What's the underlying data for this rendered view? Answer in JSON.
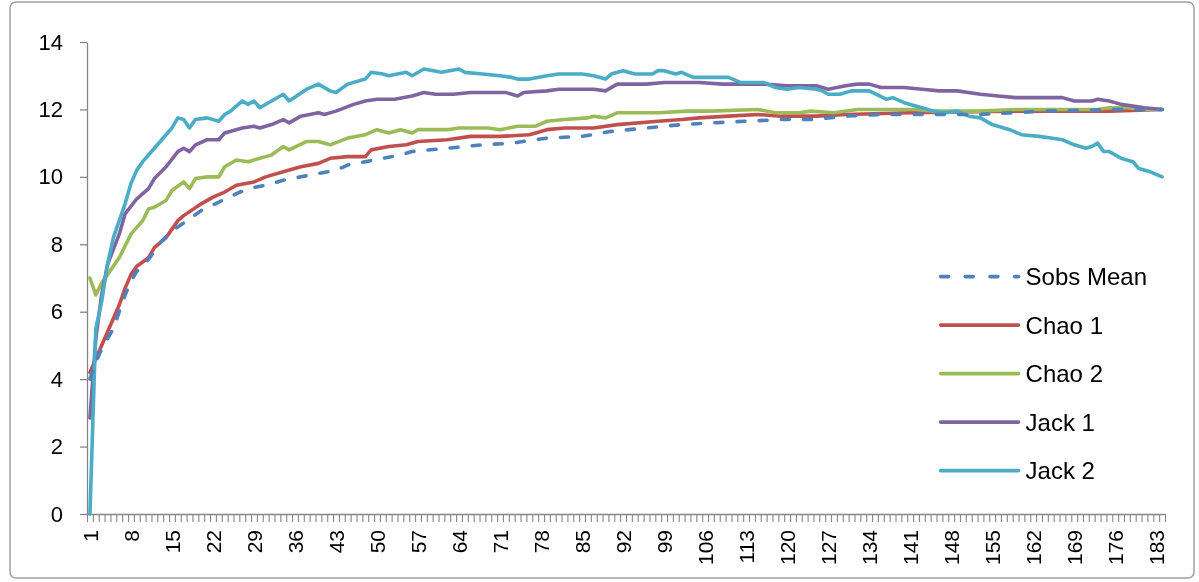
{
  "chart_data": {
    "type": "line",
    "legend": "bottom right",
    "xlim": [
      0.5,
      184.5
    ],
    "xticks": [
      1,
      8,
      15,
      22,
      29,
      36,
      43,
      50,
      57,
      64,
      71,
      78,
      85,
      92,
      99,
      106,
      113,
      120,
      127,
      134,
      141,
      148,
      155,
      162,
      169,
      176,
      183,
      {
        "value": 0.5,
        "label": null
      },
      {
        "value": 1.5,
        "label": null
      },
      {
        "value": 2.5,
        "label": null
      },
      {
        "value": 3.5,
        "label": null
      },
      {
        "value": 4.5,
        "label": null
      },
      {
        "value": 5.5,
        "label": null
      },
      {
        "value": 6.5,
        "label": null
      },
      {
        "value": 7.5,
        "label": null
      },
      {
        "value": 8.5,
        "label": null
      },
      {
        "value": 9.5,
        "label": null
      },
      {
        "value": 10.5,
        "label": null
      },
      {
        "value": 11.5,
        "label": null
      },
      {
        "value": 12.5,
        "label": null
      },
      {
        "value": 13.5,
        "label": null
      },
      {
        "value": 14.5,
        "label": null
      },
      {
        "value": 15.5,
        "label": null
      },
      {
        "value": 16.5,
        "label": null
      },
      {
        "value": 17.5,
        "label": null
      },
      {
        "value": 18.5,
        "label": null
      },
      {
        "value": 19.5,
        "label": null
      },
      {
        "value": 20.5,
        "label": null
      },
      {
        "value": 21.5,
        "label": null
      },
      {
        "value": 22.5,
        "label": null
      },
      {
        "value": 23.5,
        "label": null
      },
      {
        "value": 24.5,
        "label": null
      },
      {
        "value": 25.5,
        "label": null
      },
      {
        "value": 26.5,
        "label": null
      },
      {
        "value": 27.5,
        "label": null
      },
      {
        "value": 28.5,
        "label": null
      },
      {
        "value": 29.5,
        "label": null
      },
      {
        "value": 30.5,
        "label": null
      },
      {
        "value": 31.5,
        "label": null
      },
      {
        "value": 32.5,
        "label": null
      },
      {
        "value": 33.5,
        "label": null
      },
      {
        "value": 34.5,
        "label": null
      },
      {
        "value": 35.5,
        "label": null
      },
      {
        "value": 36.5,
        "label": null
      },
      {
        "value": 37.5,
        "label": null
      },
      {
        "value": 38.5,
        "label": null
      },
      {
        "value": 39.5,
        "label": null
      },
      {
        "value": 40.5,
        "label": null
      },
      {
        "value": 41.5,
        "label": null
      },
      {
        "value": 42.5,
        "label": null
      },
      {
        "value": 43.5,
        "label": null
      },
      {
        "value": 44.5,
        "label": null
      },
      {
        "value": 45.5,
        "label": null
      },
      {
        "value": 46.5,
        "label": null
      },
      {
        "value": 47.5,
        "label": null
      },
      {
        "value": 48.5,
        "label": null
      },
      {
        "value": 49.5,
        "label": null
      },
      {
        "value": 50.5,
        "label": null
      },
      {
        "value": 51.5,
        "label": null
      },
      {
        "value": 52.5,
        "label": null
      },
      {
        "value": 53.5,
        "label": null
      },
      {
        "value": 54.5,
        "label": null
      },
      {
        "value": 55.5,
        "label": null
      },
      {
        "value": 56.5,
        "label": null
      },
      {
        "value": 57.5,
        "label": null
      },
      {
        "value": 58.5,
        "label": null
      },
      {
        "value": 59.5,
        "label": null
      },
      {
        "value": 60.5,
        "label": null
      },
      {
        "value": 61.5,
        "label": null
      },
      {
        "value": 62.5,
        "label": null
      },
      {
        "value": 63.5,
        "label": null
      },
      {
        "value": 64.5,
        "label": null
      },
      {
        "value": 65.5,
        "label": null
      },
      {
        "value": 66.5,
        "label": null
      },
      {
        "value": 67.5,
        "label": null
      },
      {
        "value": 68.5,
        "label": null
      },
      {
        "value": 69.5,
        "label": null
      },
      {
        "value": 70.5,
        "label": null
      },
      {
        "value": 71.5,
        "label": null
      },
      {
        "value": 72.5,
        "label": null
      },
      {
        "value": 73.5,
        "label": null
      },
      {
        "value": 74.5,
        "label": null
      },
      {
        "value": 75.5,
        "label": null
      },
      {
        "value": 76.5,
        "label": null
      },
      {
        "value": 77.5,
        "label": null
      },
      {
        "value": 78.5,
        "label": null
      },
      {
        "value": 79.5,
        "label": null
      },
      {
        "value": 80.5,
        "label": null
      },
      {
        "value": 81.5,
        "label": null
      },
      {
        "value": 82.5,
        "label": null
      },
      {
        "value": 83.5,
        "label": null
      },
      {
        "value": 84.5,
        "label": null
      },
      {
        "value": 85.5,
        "label": null
      },
      {
        "value": 86.5,
        "label": null
      },
      {
        "value": 87.5,
        "label": null
      },
      {
        "value": 88.5,
        "label": null
      },
      {
        "value": 89.5,
        "label": null
      },
      {
        "value": 90.5,
        "label": null
      },
      {
        "value": 91.5,
        "label": null
      },
      {
        "value": 92.5,
        "label": null
      },
      {
        "value": 93.5,
        "label": null
      },
      {
        "value": 94.5,
        "label": null
      },
      {
        "value": 95.5,
        "label": null
      },
      {
        "value": 96.5,
        "label": null
      },
      {
        "value": 97.5,
        "label": null
      },
      {
        "value": 98.5,
        "label": null
      },
      {
        "value": 99.5,
        "label": null
      },
      {
        "value": 100.5,
        "label": null
      },
      {
        "value": 101.5,
        "label": null
      },
      {
        "value": 102.5,
        "label": null
      },
      {
        "value": 103.5,
        "label": null
      },
      {
        "value": 104.5,
        "label": null
      },
      {
        "value": 105.5,
        "label": null
      },
      {
        "value": 106.5,
        "label": null
      },
      {
        "value": 107.5,
        "label": null
      },
      {
        "value": 108.5,
        "label": null
      },
      {
        "value": 109.5,
        "label": null
      },
      {
        "value": 110.5,
        "label": null
      },
      {
        "value": 111.5,
        "label": null
      },
      {
        "value": 112.5,
        "label": null
      },
      {
        "value": 113.5,
        "label": null
      },
      {
        "value": 114.5,
        "label": null
      },
      {
        "value": 115.5,
        "label": null
      },
      {
        "value": 116.5,
        "label": null
      },
      {
        "value": 117.5,
        "label": null
      },
      {
        "value": 118.5,
        "label": null
      },
      {
        "value": 119.5,
        "label": null
      },
      {
        "value": 120.5,
        "label": null
      },
      {
        "value": 121.5,
        "label": null
      },
      {
        "value": 122.5,
        "label": null
      },
      {
        "value": 123.5,
        "label": null
      },
      {
        "value": 124.5,
        "label": null
      },
      {
        "value": 125.5,
        "label": null
      },
      {
        "value": 126.5,
        "label": null
      },
      {
        "value": 127.5,
        "label": null
      },
      {
        "value": 128.5,
        "label": null
      },
      {
        "value": 129.5,
        "label": null
      },
      {
        "value": 130.5,
        "label": null
      },
      {
        "value": 131.5,
        "label": null
      },
      {
        "value": 132.5,
        "label": null
      },
      {
        "value": 133.5,
        "label": null
      },
      {
        "value": 134.5,
        "label": null
      },
      {
        "value": 135.5,
        "label": null
      },
      {
        "value": 136.5,
        "label": null
      },
      {
        "value": 137.5,
        "label": null
      },
      {
        "value": 138.5,
        "label": null
      },
      {
        "value": 139.5,
        "label": null
      },
      {
        "value": 140.5,
        "label": null
      },
      {
        "value": 141.5,
        "label": null
      },
      {
        "value": 142.5,
        "label": null
      },
      {
        "value": 143.5,
        "label": null
      },
      {
        "value": 144.5,
        "label": null
      },
      {
        "value": 145.5,
        "label": null
      },
      {
        "value": 146.5,
        "label": null
      },
      {
        "value": 147.5,
        "label": null
      },
      {
        "value": 148.5,
        "label": null
      },
      {
        "value": 149.5,
        "label": null
      },
      {
        "value": 150.5,
        "label": null
      },
      {
        "value": 151.5,
        "label": null
      },
      {
        "value": 152.5,
        "label": null
      },
      {
        "value": 153.5,
        "label": null
      },
      {
        "value": 154.5,
        "label": null
      },
      {
        "value": 155.5,
        "label": null
      },
      {
        "value": 156.5,
        "label": null
      },
      {
        "value": 157.5,
        "label": null
      },
      {
        "value": 158.5,
        "label": null
      },
      {
        "value": 159.5,
        "label": null
      },
      {
        "value": 160.5,
        "label": null
      },
      {
        "value": 161.5,
        "label": null
      },
      {
        "value": 162.5,
        "label": null
      },
      {
        "value": 163.5,
        "label": null
      },
      {
        "value": 164.5,
        "label": null
      },
      {
        "value": 165.5,
        "label": null
      },
      {
        "value": 166.5,
        "label": null
      },
      {
        "value": 167.5,
        "label": null
      },
      {
        "value": 168.5,
        "label": null
      },
      {
        "value": 169.5,
        "label": null
      },
      {
        "value": 170.5,
        "label": null
      },
      {
        "value": 171.5,
        "label": null
      },
      {
        "value": 172.5,
        "label": null
      },
      {
        "value": 173.5,
        "label": null
      },
      {
        "value": 174.5,
        "label": null
      },
      {
        "value": 175.5,
        "label": null
      },
      {
        "value": 176.5,
        "label": null
      },
      {
        "value": 177.5,
        "label": null
      },
      {
        "value": 178.5,
        "label": null
      },
      {
        "value": 179.5,
        "label": null
      },
      {
        "value": 180.5,
        "label": null
      },
      {
        "value": 181.5,
        "label": null
      },
      {
        "value": 182.5,
        "label": null
      },
      {
        "value": 183.5,
        "label": null
      },
      {
        "value": 184.5,
        "label": null
      }
    ],
    "ylim": [
      0,
      14
    ],
    "yticks": [
      0,
      2,
      4,
      6,
      8,
      10,
      12,
      14
    ],
    "series": [
      {
        "name": "Sobs Mean",
        "color": "#4f81bd",
        "line_style": "dashed",
        "x": [
          1,
          2,
          3,
          4,
          5,
          6,
          7,
          8,
          9,
          11,
          13,
          15,
          18,
          20,
          23,
          26,
          28,
          31,
          34,
          37,
          40,
          43,
          45,
          48,
          51,
          54,
          56,
          62,
          68,
          73,
          79,
          85,
          90,
          96,
          102,
          107,
          113,
          119,
          124,
          130,
          136,
          144,
          153,
          164,
          176,
          184
        ],
        "values": [
          4.0,
          4.5,
          4.9,
          5.2,
          5.5,
          6.0,
          6.5,
          6.9,
          7.2,
          7.55,
          8.05,
          8.4,
          8.75,
          9.0,
          9.25,
          9.5,
          9.65,
          9.75,
          9.9,
          10.0,
          10.1,
          10.2,
          10.35,
          10.45,
          10.55,
          10.65,
          10.75,
          10.85,
          10.95,
          11.0,
          11.15,
          11.2,
          11.35,
          11.45,
          11.55,
          11.6,
          11.65,
          11.7,
          11.7,
          11.8,
          11.85,
          11.85,
          11.85,
          11.95,
          12.0,
          12.0
        ]
      },
      {
        "name": "Chao 1",
        "color": "#c0504d",
        "x": [
          1,
          2,
          3,
          4,
          5,
          6,
          7,
          8,
          9,
          11,
          12,
          14,
          15,
          16,
          17,
          20,
          22,
          24,
          26,
          29,
          31,
          34,
          37,
          40,
          42,
          45,
          48,
          49,
          52,
          55,
          57,
          62,
          66,
          71,
          76,
          79,
          82,
          87,
          91,
          98,
          102,
          105,
          110,
          115,
          119,
          125,
          130,
          141,
          158,
          175,
          184
        ],
        "values": [
          4.2,
          4.6,
          5.0,
          5.4,
          5.8,
          6.2,
          6.7,
          7.1,
          7.35,
          7.6,
          7.9,
          8.2,
          8.45,
          8.7,
          8.85,
          9.2,
          9.4,
          9.55,
          9.75,
          9.85,
          10.0,
          10.15,
          10.3,
          10.4,
          10.55,
          10.6,
          10.6,
          10.8,
          10.9,
          10.95,
          11.05,
          11.1,
          11.2,
          11.2,
          11.25,
          11.4,
          11.45,
          11.45,
          11.55,
          11.65,
          11.7,
          11.75,
          11.8,
          11.85,
          11.8,
          11.8,
          11.85,
          11.9,
          11.95,
          11.95,
          12.0
        ]
      },
      {
        "name": "Chao 2",
        "color": "#9bbb59",
        "x": [
          1,
          2,
          3,
          4,
          6,
          8,
          10,
          11,
          12,
          14,
          15,
          17,
          18,
          19,
          21,
          23,
          24,
          26,
          28,
          31,
          32,
          34,
          35,
          38,
          40,
          42,
          45,
          48,
          50,
          52,
          54,
          56,
          57,
          62,
          64,
          67,
          69,
          71,
          74,
          77,
          79,
          82,
          86,
          87,
          89,
          91,
          96,
          98,
          103,
          107,
          115,
          118,
          122,
          124,
          128,
          132,
          142,
          145,
          153,
          159,
          164,
          173,
          175,
          178,
          181,
          184
        ],
        "values": [
          7.0,
          6.5,
          6.85,
          7.1,
          7.6,
          8.3,
          8.7,
          9.05,
          9.1,
          9.3,
          9.6,
          9.85,
          9.65,
          9.95,
          10.0,
          10.0,
          10.3,
          10.5,
          10.45,
          10.6,
          10.65,
          10.9,
          10.8,
          11.05,
          11.05,
          10.95,
          11.15,
          11.25,
          11.4,
          11.3,
          11.4,
          11.3,
          11.4,
          11.4,
          11.45,
          11.45,
          11.45,
          11.4,
          11.5,
          11.5,
          11.65,
          11.7,
          11.75,
          11.8,
          11.75,
          11.9,
          11.9,
          11.9,
          11.95,
          11.95,
          12.0,
          11.9,
          11.9,
          11.95,
          11.9,
          12.0,
          12.0,
          11.95,
          11.95,
          12.0,
          12.0,
          12.0,
          12.05,
          12.05,
          12.0,
          12.0
        ]
      },
      {
        "name": "Jack 1",
        "color": "#8064a2",
        "x": [
          1,
          2,
          3,
          4,
          6,
          7,
          9,
          11,
          12,
          14,
          16,
          17,
          18,
          19,
          21,
          23,
          24,
          27,
          29,
          30,
          32,
          34,
          35,
          37,
          40,
          41,
          43,
          46,
          48,
          50,
          53,
          56,
          58,
          60,
          63,
          66,
          69,
          72,
          74,
          75,
          79,
          81,
          85,
          87,
          89,
          91,
          96,
          99,
          102,
          105,
          109,
          116,
          120,
          122,
          125,
          127,
          130,
          132,
          134,
          136,
          140,
          143,
          146,
          149,
          153,
          156,
          159,
          167,
          169,
          172,
          173,
          175,
          177,
          179,
          181,
          184
        ],
        "values": [
          2.85,
          5.2,
          6.5,
          7.4,
          8.3,
          8.9,
          9.35,
          9.65,
          9.95,
          10.3,
          10.75,
          10.85,
          10.75,
          10.95,
          11.1,
          11.1,
          11.3,
          11.45,
          11.5,
          11.45,
          11.55,
          11.7,
          11.6,
          11.8,
          11.9,
          11.85,
          11.95,
          12.15,
          12.25,
          12.3,
          12.3,
          12.4,
          12.5,
          12.45,
          12.45,
          12.5,
          12.5,
          12.5,
          12.4,
          12.5,
          12.55,
          12.6,
          12.6,
          12.6,
          12.55,
          12.75,
          12.75,
          12.8,
          12.8,
          12.8,
          12.75,
          12.75,
          12.7,
          12.7,
          12.7,
          12.6,
          12.7,
          12.75,
          12.75,
          12.65,
          12.65,
          12.6,
          12.55,
          12.55,
          12.45,
          12.4,
          12.35,
          12.35,
          12.25,
          12.25,
          12.3,
          12.25,
          12.15,
          12.1,
          12.05,
          12.0
        ]
      },
      {
        "name": "Jack 2",
        "color": "#4bacc6",
        "x": [
          1,
          2,
          3,
          4,
          5,
          6,
          7,
          8,
          9,
          10,
          12,
          14,
          15,
          16,
          17,
          18,
          19,
          21,
          23,
          24,
          25,
          27,
          28,
          29,
          30,
          32,
          34,
          35,
          38,
          40,
          42,
          43,
          45,
          48,
          49,
          51,
          52,
          55,
          56,
          58,
          61,
          64,
          65,
          68,
          71,
          73,
          74,
          76,
          79,
          81,
          85,
          87,
          89,
          90,
          92,
          94,
          97,
          98,
          99,
          101,
          102,
          104,
          110,
          112,
          116,
          118,
          120,
          122,
          125,
          126,
          127,
          129,
          131,
          134,
          137,
          138,
          140,
          143,
          145,
          147,
          149,
          151,
          153,
          155,
          158,
          160,
          163,
          165,
          167,
          169,
          171,
          172,
          173,
          174,
          175,
          177,
          179,
          180,
          182,
          184
        ],
        "values": [
          0,
          5.5,
          6.3,
          7.4,
          8.2,
          8.7,
          9.2,
          9.8,
          10.2,
          10.45,
          10.85,
          11.25,
          11.45,
          11.75,
          11.7,
          11.45,
          11.7,
          11.75,
          11.65,
          11.85,
          11.95,
          12.25,
          12.15,
          12.25,
          12.05,
          12.25,
          12.45,
          12.25,
          12.6,
          12.75,
          12.55,
          12.5,
          12.75,
          12.9,
          13.1,
          13.05,
          13.0,
          13.1,
          13.0,
          13.2,
          13.1,
          13.2,
          13.1,
          13.05,
          13.0,
          12.95,
          12.9,
          12.9,
          13.0,
          13.05,
          13.05,
          13.0,
          12.9,
          13.05,
          13.15,
          13.05,
          13.05,
          13.15,
          13.15,
          13.05,
          13.1,
          12.95,
          12.95,
          12.8,
          12.8,
          12.65,
          12.6,
          12.65,
          12.6,
          12.55,
          12.45,
          12.45,
          12.55,
          12.55,
          12.3,
          12.35,
          12.2,
          12.05,
          11.95,
          11.9,
          11.95,
          11.8,
          11.75,
          11.55,
          11.4,
          11.25,
          11.2,
          11.15,
          11.1,
          10.95,
          10.85,
          10.9,
          11.0,
          10.75,
          10.75,
          10.55,
          10.45,
          10.25,
          10.15,
          10.0
        ]
      }
    ]
  }
}
